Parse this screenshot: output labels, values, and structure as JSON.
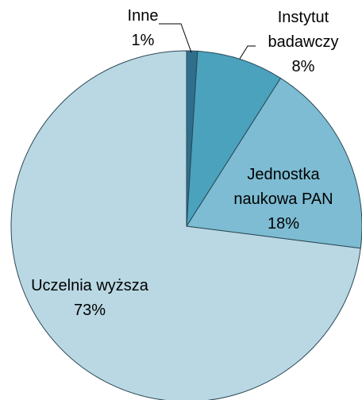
{
  "chart_data": {
    "type": "pie",
    "categories": [
      "Inne",
      "Instytut badawczy",
      "Jednostka naukowa PAN",
      "Uczelnia wyższa"
    ],
    "values": [
      1,
      8,
      18,
      73
    ],
    "value_labels": [
      "1%",
      "8%",
      "18%",
      "73%"
    ],
    "colors": [
      "#2f6f8c",
      "#4aa2bd",
      "#7dbcd2",
      "#b9d8e3"
    ]
  }
}
